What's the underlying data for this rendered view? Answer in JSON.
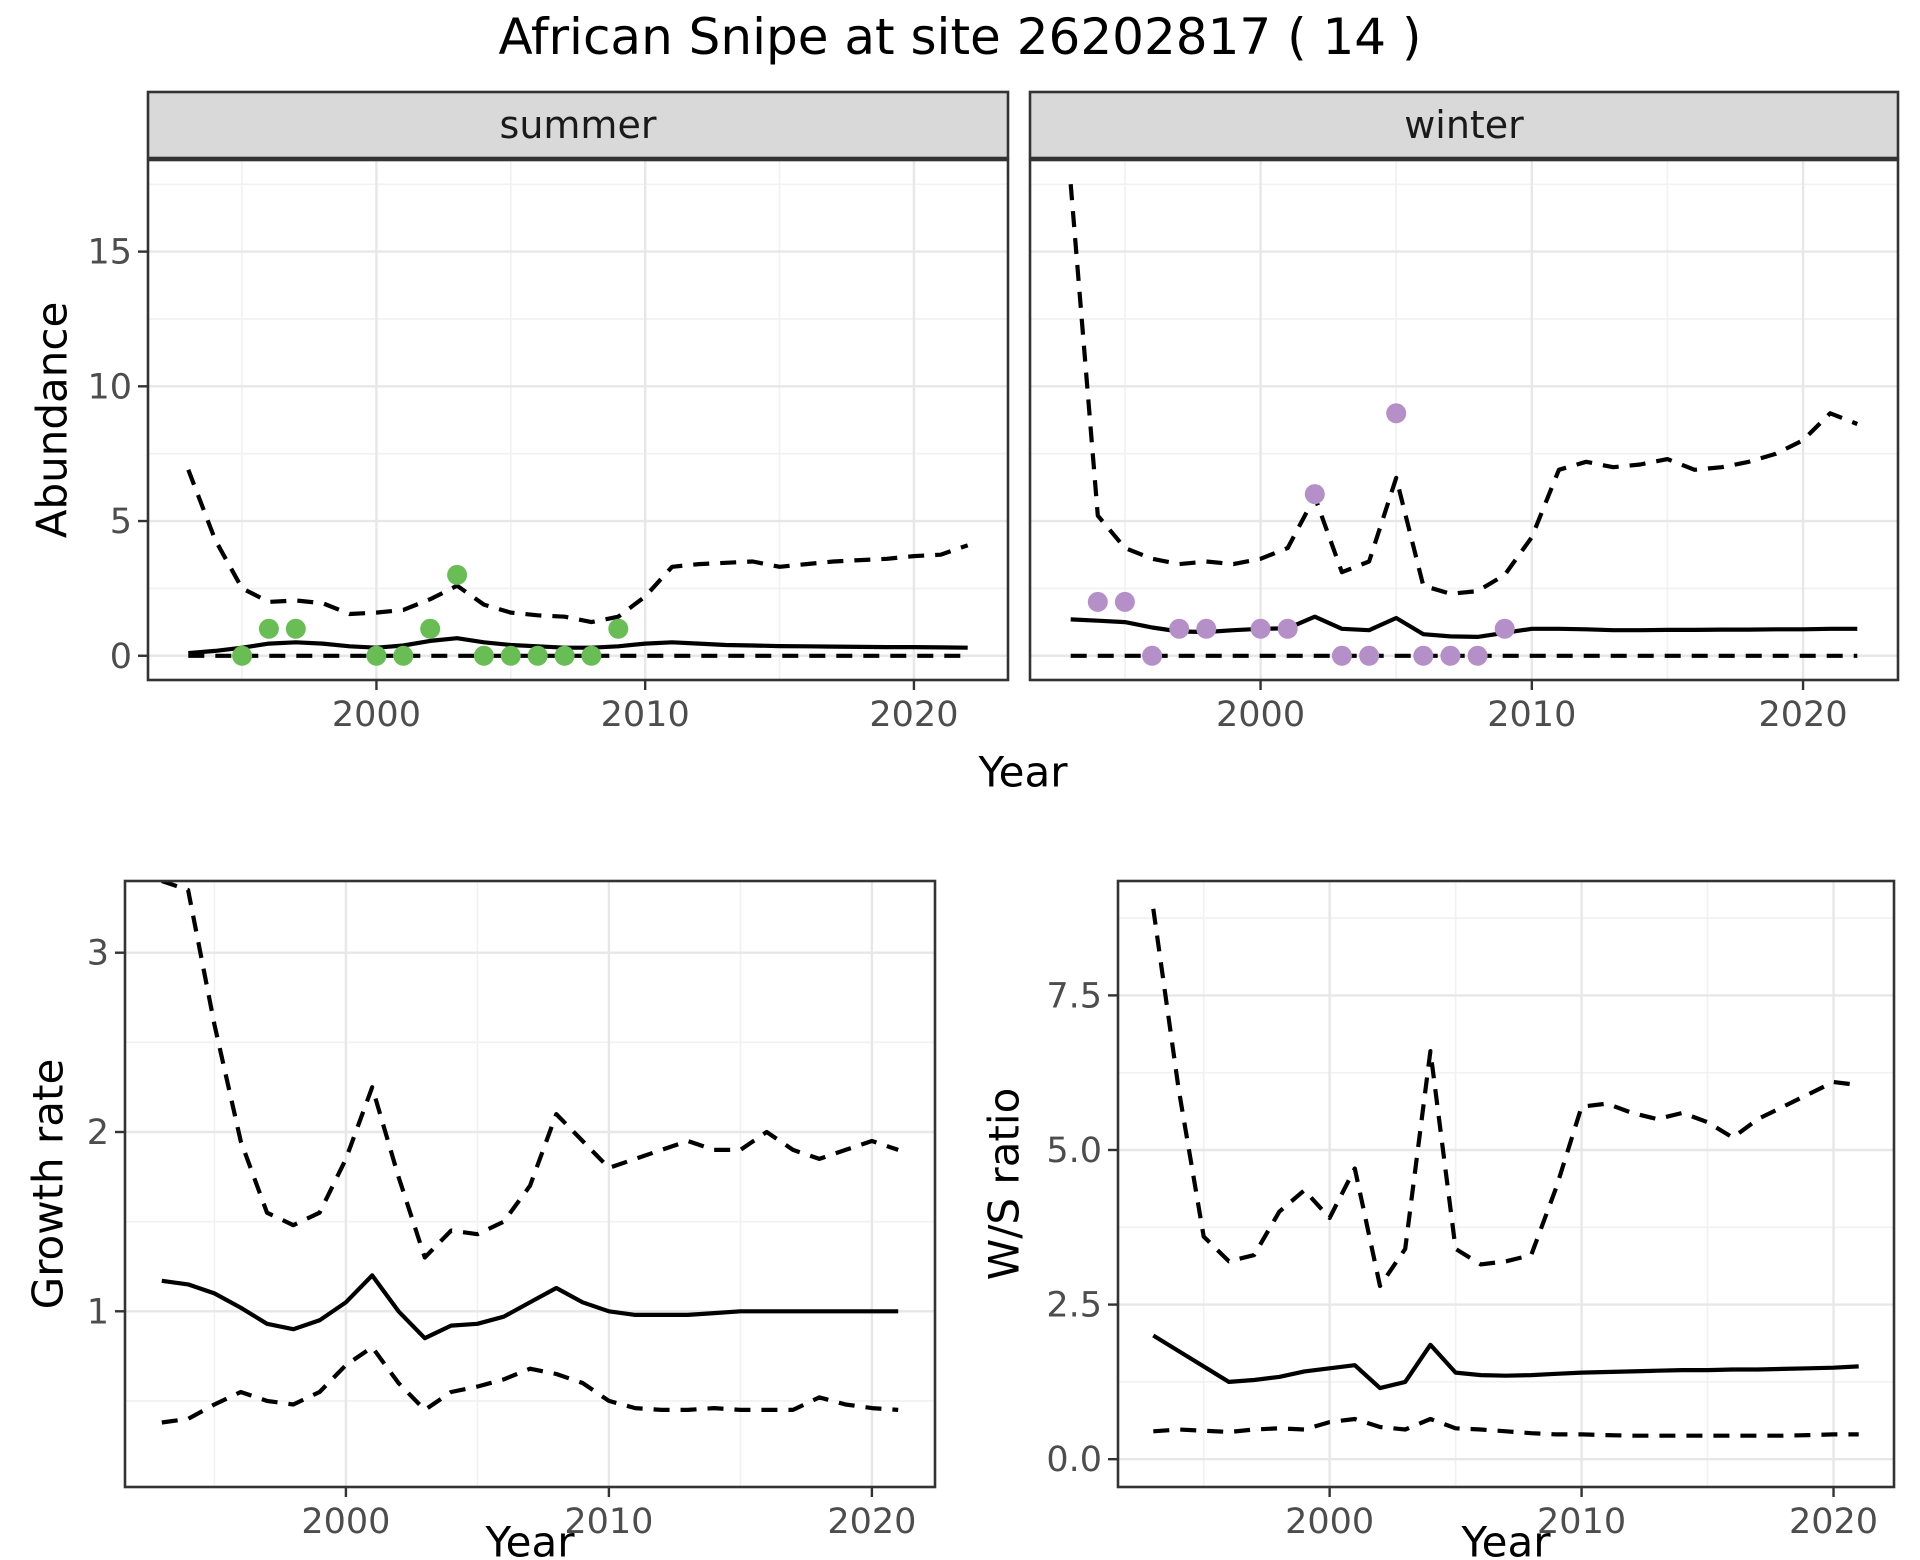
{
  "title": "African Snipe at site 26202817 ( 14 )",
  "axis_titles": {
    "x": "Year",
    "y_abundance": "Abundance",
    "y_growth": "Growth rate",
    "y_ws": "W/S ratio"
  },
  "facets": [
    {
      "label": "summer"
    },
    {
      "label": "winter"
    }
  ],
  "colors": {
    "observed_summer": "#68bd54",
    "observed_winter": "#b48fc8",
    "line": "#000000",
    "strip_bg": "#d9d9d9",
    "grid_major": "#e7e7e7",
    "grid_minor": "#f1f1f1",
    "panel_border": "#333333",
    "tick_mark": "#333333",
    "tick_label": "#4d4d4d"
  },
  "chart_data": [
    {
      "id": "abundance-summer",
      "type": "line",
      "facet": "summer",
      "title": "African Snipe at site 26202817 ( 14 )",
      "xlabel": "Year",
      "ylabel": "Abundance",
      "xlim": [
        1991.5,
        2023.5
      ],
      "ylim": [
        -0.9,
        18.4
      ],
      "x_major": [
        2000,
        2010,
        2020
      ],
      "x_major_labels": [
        "2000",
        "2010",
        "2020"
      ],
      "x_minor": [
        1995,
        2005,
        2015
      ],
      "y_major": [
        0,
        5,
        10,
        15
      ],
      "y_major_labels": [
        "0",
        "5",
        "10",
        "15"
      ],
      "y_minor": [
        2.5,
        7.5,
        12.5,
        17.5
      ],
      "x": [
        1993,
        1994,
        1995,
        1996,
        1997,
        1998,
        1999,
        2000,
        2001,
        2002,
        2003,
        2004,
        2005,
        2006,
        2007,
        2008,
        2009,
        2010,
        2011,
        2012,
        2013,
        2014,
        2015,
        2016,
        2017,
        2018,
        2019,
        2020,
        2021,
        2022
      ],
      "series": [
        {
          "name": "fit",
          "linetype": "solid",
          "values": [
            0.1,
            0.18,
            0.3,
            0.45,
            0.5,
            0.45,
            0.35,
            0.3,
            0.38,
            0.55,
            0.65,
            0.5,
            0.4,
            0.35,
            0.3,
            0.3,
            0.35,
            0.45,
            0.5,
            0.45,
            0.4,
            0.38,
            0.36,
            0.35,
            0.34,
            0.33,
            0.32,
            0.32,
            0.31,
            0.3
          ]
        },
        {
          "name": "upper_ci",
          "linetype": "dashed",
          "values": [
            6.9,
            4.3,
            2.5,
            2.0,
            2.05,
            1.95,
            1.55,
            1.6,
            1.7,
            2.1,
            2.6,
            1.9,
            1.6,
            1.5,
            1.45,
            1.25,
            1.45,
            2.2,
            3.3,
            3.4,
            3.45,
            3.5,
            3.3,
            3.4,
            3.5,
            3.55,
            3.6,
            3.7,
            3.75,
            4.1
          ]
        },
        {
          "name": "lower_ci",
          "linetype": "dashed",
          "values": [
            0,
            0,
            0,
            0,
            0,
            0,
            0,
            0,
            0,
            0,
            0,
            0,
            0,
            0,
            0,
            0,
            0,
            0,
            0,
            0,
            0,
            0,
            0,
            0,
            0,
            0,
            0,
            0,
            0,
            0
          ]
        }
      ],
      "points": {
        "name": "observed-counts-summer",
        "color_key": "observed_summer",
        "x": [
          1995,
          1996,
          1997,
          2000,
          2001,
          2002,
          2003,
          2004,
          2005,
          2006,
          2007,
          2008,
          2009
        ],
        "y": [
          0,
          1,
          1,
          0,
          0,
          1,
          3,
          0,
          0,
          0,
          0,
          0,
          1
        ]
      }
    },
    {
      "id": "abundance-winter",
      "type": "line",
      "facet": "winter",
      "xlabel": "Year",
      "ylabel": "Abundance",
      "xlim": [
        1991.5,
        2023.5
      ],
      "ylim": [
        -0.9,
        18.4
      ],
      "x_major": [
        2000,
        2010,
        2020
      ],
      "x_major_labels": [
        "2000",
        "2010",
        "2020"
      ],
      "x_minor": [
        1995,
        2005,
        2015
      ],
      "y_major": [
        0,
        5,
        10,
        15
      ],
      "y_major_labels": [
        "0",
        "5",
        "10",
        "15"
      ],
      "y_minor": [
        2.5,
        7.5,
        12.5,
        17.5
      ],
      "x": [
        1993,
        1994,
        1995,
        1996,
        1997,
        1998,
        1999,
        2000,
        2001,
        2002,
        2003,
        2004,
        2005,
        2006,
        2007,
        2008,
        2009,
        2010,
        2011,
        2012,
        2013,
        2014,
        2015,
        2016,
        2017,
        2018,
        2019,
        2020,
        2021,
        2022
      ],
      "series": [
        {
          "name": "fit",
          "linetype": "solid",
          "values": [
            1.35,
            1.3,
            1.25,
            1.05,
            0.9,
            0.88,
            0.95,
            1.0,
            1.02,
            1.45,
            1.0,
            0.95,
            1.4,
            0.8,
            0.72,
            0.7,
            0.85,
            1.0,
            1.0,
            0.98,
            0.95,
            0.95,
            0.96,
            0.96,
            0.97,
            0.97,
            0.98,
            0.98,
            1.0,
            1.0
          ]
        },
        {
          "name": "upper_ci",
          "linetype": "dashed",
          "values": [
            17.5,
            5.2,
            4.0,
            3.6,
            3.4,
            3.5,
            3.4,
            3.6,
            4.0,
            5.9,
            3.1,
            3.5,
            6.6,
            2.6,
            2.3,
            2.4,
            3.0,
            4.4,
            6.9,
            7.2,
            7.0,
            7.1,
            7.3,
            6.9,
            7.0,
            7.2,
            7.5,
            8.0,
            9.0,
            8.6
          ]
        },
        {
          "name": "lower_ci",
          "linetype": "dashed",
          "values": [
            0,
            0,
            0,
            0,
            0,
            0,
            0,
            0,
            0,
            0,
            0,
            0,
            0,
            0,
            0,
            0,
            0,
            0,
            0,
            0,
            0,
            0,
            0,
            0,
            0,
            0,
            0,
            0,
            0,
            0
          ]
        }
      ],
      "points": {
        "name": "observed-counts-winter",
        "color_key": "observed_winter",
        "x": [
          1994,
          1995,
          1996,
          1997,
          1998,
          2000,
          2001,
          2002,
          2003,
          2004,
          2005,
          2006,
          2007,
          2008,
          2009
        ],
        "y": [
          2,
          2,
          0,
          1,
          1,
          1,
          1,
          6,
          0,
          0,
          9,
          0,
          0,
          0,
          1
        ]
      }
    },
    {
      "id": "growth-rate",
      "type": "line",
      "facet": null,
      "xlabel": "Year",
      "ylabel": "Growth rate",
      "xlim": [
        1991.6,
        2022.4
      ],
      "ylim": [
        0.02,
        3.4
      ],
      "x_major": [
        2000,
        2010,
        2020
      ],
      "x_major_labels": [
        "2000",
        "2010",
        "2020"
      ],
      "x_minor": [
        1995,
        2005,
        2015
      ],
      "y_major": [
        1,
        2,
        3
      ],
      "y_major_labels": [
        "1",
        "2",
        "3"
      ],
      "y_minor": [
        0.5,
        1.5,
        2.5
      ],
      "x": [
        1993,
        1994,
        1995,
        1996,
        1997,
        1998,
        1999,
        2000,
        2001,
        2002,
        2003,
        2004,
        2005,
        2006,
        2007,
        2008,
        2009,
        2010,
        2011,
        2012,
        2013,
        2014,
        2015,
        2016,
        2017,
        2018,
        2019,
        2020,
        2021
      ],
      "series": [
        {
          "name": "fit",
          "linetype": "solid",
          "values": [
            1.17,
            1.15,
            1.1,
            1.02,
            0.93,
            0.9,
            0.95,
            1.05,
            1.2,
            1.0,
            0.85,
            0.92,
            0.93,
            0.97,
            1.05,
            1.13,
            1.05,
            1.0,
            0.98,
            0.98,
            0.98,
            0.99,
            1.0,
            1.0,
            1.0,
            1.0,
            1.0,
            1.0,
            1.0
          ]
        },
        {
          "name": "upper_ci",
          "linetype": "dashed",
          "values": [
            3.4,
            3.35,
            2.6,
            1.95,
            1.55,
            1.48,
            1.55,
            1.85,
            2.25,
            1.75,
            1.3,
            1.45,
            1.43,
            1.5,
            1.7,
            2.1,
            1.95,
            1.8,
            1.85,
            1.9,
            1.95,
            1.9,
            1.9,
            2.0,
            1.9,
            1.85,
            1.9,
            1.95,
            1.9
          ]
        },
        {
          "name": "lower_ci",
          "linetype": "dashed",
          "values": [
            0.38,
            0.4,
            0.48,
            0.55,
            0.5,
            0.48,
            0.55,
            0.7,
            0.8,
            0.6,
            0.45,
            0.55,
            0.58,
            0.62,
            0.68,
            0.65,
            0.6,
            0.5,
            0.46,
            0.45,
            0.45,
            0.46,
            0.45,
            0.45,
            0.45,
            0.52,
            0.48,
            0.46,
            0.45
          ]
        }
      ],
      "points": null
    },
    {
      "id": "ws-ratio",
      "type": "line",
      "facet": null,
      "xlabel": "Year",
      "ylabel": "W/S ratio",
      "xlim": [
        1991.6,
        2022.4
      ],
      "ylim": [
        -0.45,
        9.35
      ],
      "x_major": [
        2000,
        2010,
        2020
      ],
      "x_major_labels": [
        "2000",
        "2010",
        "2020"
      ],
      "x_minor": [
        1995,
        2005,
        2015
      ],
      "y_major": [
        0,
        2.5,
        5,
        7.5
      ],
      "y_major_labels": [
        "0.0",
        "2.5",
        "5.0",
        "7.5"
      ],
      "y_minor": [
        1.25,
        3.75,
        6.25,
        8.75
      ],
      "x": [
        1993,
        1994,
        1995,
        1996,
        1997,
        1998,
        1999,
        2000,
        2001,
        2002,
        2003,
        2004,
        2005,
        2006,
        2007,
        2008,
        2009,
        2010,
        2011,
        2012,
        2013,
        2014,
        2015,
        2016,
        2017,
        2018,
        2019,
        2020,
        2021
      ],
      "series": [
        {
          "name": "fit",
          "linetype": "solid",
          "values": [
            2.0,
            1.75,
            1.5,
            1.25,
            1.28,
            1.33,
            1.42,
            1.47,
            1.52,
            1.15,
            1.25,
            1.85,
            1.4,
            1.36,
            1.35,
            1.36,
            1.38,
            1.4,
            1.41,
            1.42,
            1.43,
            1.44,
            1.44,
            1.45,
            1.45,
            1.46,
            1.47,
            1.48,
            1.5
          ]
        },
        {
          "name": "upper_ci",
          "linetype": "dashed",
          "values": [
            8.9,
            6.0,
            3.6,
            3.2,
            3.3,
            4.0,
            4.35,
            3.9,
            4.7,
            2.8,
            3.4,
            6.6,
            3.4,
            3.15,
            3.2,
            3.3,
            4.4,
            5.7,
            5.75,
            5.6,
            5.5,
            5.6,
            5.45,
            5.2,
            5.5,
            5.7,
            5.9,
            6.1,
            6.05
          ]
        },
        {
          "name": "lower_ci",
          "linetype": "dashed",
          "values": [
            0.45,
            0.48,
            0.46,
            0.44,
            0.48,
            0.5,
            0.48,
            0.6,
            0.65,
            0.52,
            0.48,
            0.65,
            0.5,
            0.48,
            0.45,
            0.42,
            0.4,
            0.4,
            0.39,
            0.38,
            0.38,
            0.38,
            0.38,
            0.38,
            0.38,
            0.38,
            0.39,
            0.4,
            0.4
          ]
        }
      ],
      "points": null
    }
  ]
}
